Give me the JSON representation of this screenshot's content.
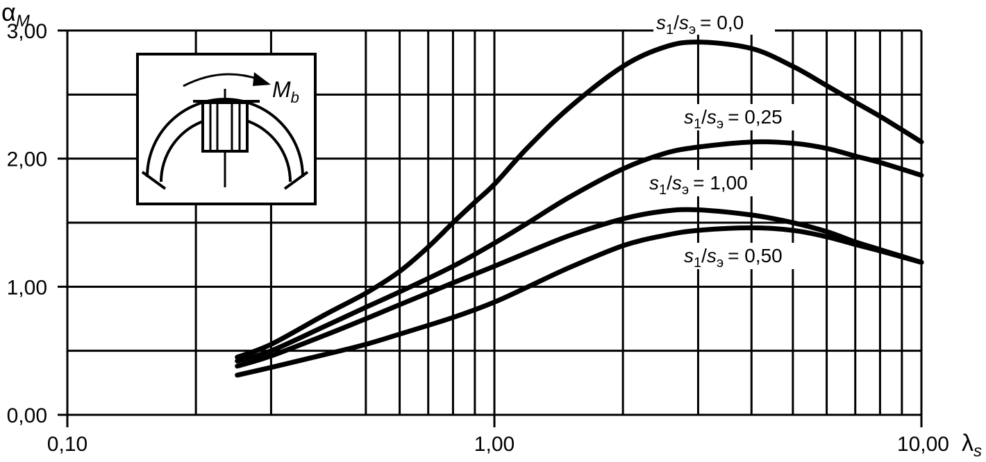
{
  "chart_data": {
    "type": "line",
    "xscale": "log",
    "xlim": [
      0.1,
      10
    ],
    "ylim": [
      0,
      3
    ],
    "grid": true,
    "xlabel": {
      "base": "λ",
      "sub": "s"
    },
    "ylabel": {
      "base": "α",
      "sub": "M"
    },
    "x_ticks": [
      {
        "value": 0.1,
        "label": "0,10"
      },
      {
        "value": 1,
        "label": "1,00"
      },
      {
        "value": 10,
        "label": "10,00"
      }
    ],
    "y_ticks": [
      {
        "value": 0,
        "label": "0,00"
      },
      {
        "value": 1,
        "label": "1,00"
      },
      {
        "value": 2,
        "label": "2,00"
      },
      {
        "value": 3,
        "label": "3,00"
      }
    ],
    "y_grid": [
      0,
      0.5,
      1,
      1.5,
      2,
      2.5,
      3
    ],
    "x_grid": [
      0.1,
      0.2,
      0.3,
      0.5,
      0.6,
      0.7,
      0.8,
      0.9,
      1,
      2,
      3,
      4,
      5,
      6,
      7,
      8,
      9,
      10
    ],
    "series": [
      {
        "name": "s1/sэ = 0,0",
        "label": {
          "s": "s",
          "one": "1",
          "slash": "/",
          "sub": "э",
          "value": "= 0,0"
        },
        "x": [
          0.25,
          0.3,
          0.4,
          0.5,
          0.6,
          0.7,
          0.8,
          0.9,
          1.0,
          1.2,
          1.5,
          2.0,
          2.5,
          3.0,
          4.0,
          5.0,
          6.0,
          7.0,
          8.0,
          10.0
        ],
        "y": [
          0.45,
          0.55,
          0.78,
          0.95,
          1.12,
          1.31,
          1.5,
          1.66,
          1.8,
          2.09,
          2.4,
          2.72,
          2.87,
          2.91,
          2.86,
          2.72,
          2.57,
          2.44,
          2.33,
          2.13
        ]
      },
      {
        "name": "s1/sэ = 0,25",
        "label": {
          "s": "s",
          "one": "1",
          "slash": "/",
          "sub": "э",
          "value": "= 0,25"
        },
        "x": [
          0.25,
          0.3,
          0.4,
          0.5,
          0.6,
          0.8,
          1.0,
          1.2,
          1.5,
          2.0,
          2.5,
          3.0,
          4.0,
          5.0,
          6.0,
          7.0,
          8.0,
          10.0
        ],
        "y": [
          0.42,
          0.5,
          0.69,
          0.84,
          0.96,
          1.16,
          1.34,
          1.5,
          1.7,
          1.92,
          2.04,
          2.09,
          2.13,
          2.12,
          2.08,
          2.02,
          1.97,
          1.87
        ]
      },
      {
        "name": "s1/sэ = 1,00",
        "label": {
          "s": "s",
          "one": "1",
          "slash": "/",
          "sub": "э",
          "value": "= 1,00"
        },
        "x": [
          0.25,
          0.3,
          0.4,
          0.5,
          0.6,
          0.8,
          1.0,
          1.2,
          1.5,
          2.0,
          2.5,
          3.0,
          4.0,
          5.0,
          6.0,
          7.0,
          8.0,
          10.0
        ],
        "y": [
          0.38,
          0.46,
          0.62,
          0.75,
          0.86,
          1.03,
          1.16,
          1.27,
          1.4,
          1.53,
          1.59,
          1.6,
          1.56,
          1.5,
          1.43,
          1.35,
          1.29,
          1.19
        ]
      },
      {
        "name": "s1/sэ = 0,50",
        "label": {
          "s": "s",
          "one": "1",
          "slash": "/",
          "sub": "э",
          "value": "= 0,50"
        },
        "x": [
          0.25,
          0.3,
          0.4,
          0.5,
          0.6,
          0.8,
          1.0,
          1.2,
          1.5,
          2.0,
          2.5,
          3.0,
          4.0,
          5.0,
          6.0,
          7.0,
          8.0,
          10.0
        ],
        "y": [
          0.31,
          0.37,
          0.47,
          0.55,
          0.63,
          0.76,
          0.88,
          1.0,
          1.15,
          1.32,
          1.4,
          1.44,
          1.46,
          1.44,
          1.39,
          1.33,
          1.28,
          1.19
        ]
      }
    ],
    "inset": {
      "label_base": "M",
      "label_sub": "b"
    }
  }
}
